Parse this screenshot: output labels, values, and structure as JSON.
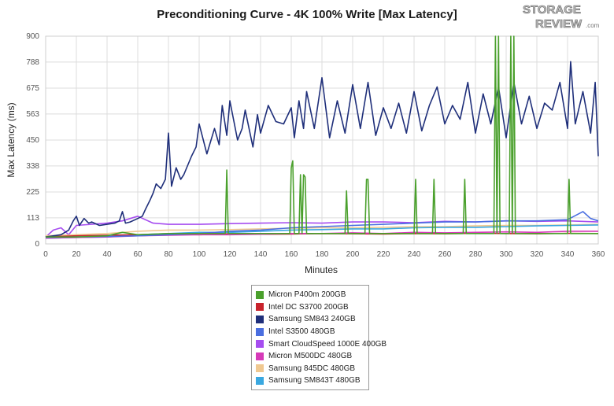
{
  "chart_data": {
    "type": "line",
    "title": "Preconditioning Curve - 4K 100% Write [Max Latency]",
    "xlabel": "Minutes",
    "ylabel": "Max Latency (ms)",
    "xlim": [
      0,
      360
    ],
    "ylim": [
      0,
      900
    ],
    "xticks": [
      "0",
      "20",
      "40",
      "60",
      "80",
      "100",
      "120",
      "140",
      "160",
      "180",
      "200",
      "220",
      "240",
      "260",
      "280",
      "300",
      "320",
      "340",
      "360"
    ],
    "yticks": [
      "0",
      "113",
      "225",
      "338",
      "450",
      "563",
      "675",
      "788",
      "900"
    ],
    "grid": true,
    "legend_position": "bottom-center",
    "series": [
      {
        "name": "Micron P400m 200GB",
        "color": "#4aa02c",
        "x": [
          0,
          20,
          40,
          50,
          60,
          80,
          100,
          117,
          118,
          119,
          120,
          140,
          159,
          160,
          161,
          162,
          165,
          166,
          167,
          168,
          169,
          170,
          172,
          180,
          195,
          196,
          197,
          200,
          208,
          209,
          210,
          211,
          220,
          240,
          241,
          242,
          243,
          252,
          253,
          254,
          260,
          272,
          273,
          274,
          280,
          292,
          293,
          294,
          295,
          296,
          297,
          300,
          302,
          303,
          304,
          305,
          306,
          320,
          340,
          341,
          342,
          343,
          360
        ],
        "y": [
          30,
          30,
          35,
          50,
          40,
          45,
          45,
          45,
          320,
          45,
          45,
          45,
          45,
          330,
          360,
          45,
          45,
          300,
          45,
          300,
          290,
          45,
          45,
          45,
          45,
          230,
          45,
          45,
          45,
          280,
          280,
          45,
          45,
          45,
          280,
          45,
          45,
          45,
          280,
          45,
          45,
          45,
          280,
          45,
          45,
          45,
          900,
          45,
          900,
          45,
          45,
          45,
          45,
          900,
          45,
          900,
          45,
          45,
          45,
          280,
          45,
          45,
          45
        ]
      },
      {
        "name": "Intel DC S3700 200GB",
        "color": "#c8232c",
        "x": [
          0,
          20,
          40,
          60,
          80,
          100,
          120,
          140,
          160,
          180,
          200,
          220,
          240,
          260,
          280,
          300,
          320,
          340,
          360
        ],
        "y": [
          30,
          35,
          38,
          40,
          42,
          40,
          44,
          42,
          43,
          45,
          44,
          43,
          45,
          44,
          46,
          45,
          44,
          46,
          45
        ]
      },
      {
        "name": "Samsung SM843 240GB",
        "color": "#1f2f7a",
        "x": [
          0,
          10,
          15,
          18,
          20,
          22,
          25,
          28,
          30,
          35,
          40,
          45,
          48,
          50,
          52,
          55,
          60,
          63,
          65,
          68,
          70,
          72,
          75,
          78,
          80,
          82,
          85,
          88,
          90,
          95,
          98,
          100,
          105,
          110,
          113,
          115,
          118,
          120,
          125,
          128,
          130,
          135,
          138,
          140,
          145,
          150,
          155,
          160,
          162,
          165,
          168,
          170,
          175,
          180,
          185,
          190,
          195,
          200,
          205,
          210,
          215,
          220,
          225,
          230,
          235,
          240,
          245,
          250,
          255,
          260,
          265,
          270,
          275,
          280,
          285,
          290,
          295,
          300,
          305,
          310,
          315,
          320,
          325,
          330,
          335,
          340,
          342,
          345,
          350,
          355,
          358,
          360
        ],
        "y": [
          30,
          40,
          60,
          100,
          120,
          80,
          110,
          90,
          95,
          80,
          85,
          90,
          100,
          140,
          90,
          95,
          110,
          120,
          150,
          190,
          220,
          260,
          240,
          280,
          480,
          250,
          330,
          280,
          300,
          380,
          420,
          520,
          390,
          500,
          430,
          600,
          470,
          620,
          450,
          500,
          580,
          420,
          560,
          480,
          600,
          530,
          520,
          590,
          460,
          620,
          500,
          660,
          500,
          720,
          460,
          620,
          480,
          690,
          500,
          700,
          470,
          590,
          500,
          610,
          480,
          660,
          490,
          600,
          680,
          520,
          600,
          540,
          700,
          480,
          650,
          520,
          680,
          460,
          700,
          520,
          640,
          500,
          610,
          580,
          700,
          500,
          790,
          520,
          660,
          480,
          700,
          380
        ]
      },
      {
        "name": "Intel S3500 480GB",
        "color": "#4a6ee0",
        "x": [
          0,
          20,
          40,
          60,
          80,
          100,
          120,
          140,
          160,
          180,
          200,
          220,
          240,
          260,
          280,
          300,
          320,
          340,
          350,
          355,
          360
        ],
        "y": [
          28,
          30,
          32,
          35,
          40,
          45,
          55,
          60,
          70,
          75,
          80,
          85,
          90,
          95,
          95,
          100,
          100,
          105,
          140,
          110,
          100
        ]
      },
      {
        "name": "Smart CloudSpeed 1000E 400GB",
        "color": "#a64df0",
        "x": [
          0,
          5,
          10,
          15,
          20,
          40,
          50,
          60,
          70,
          80,
          100,
          120,
          140,
          160,
          180,
          200,
          220,
          240,
          260,
          280,
          300,
          320,
          340,
          360
        ],
        "y": [
          30,
          60,
          70,
          40,
          80,
          90,
          100,
          120,
          90,
          85,
          85,
          88,
          90,
          92,
          90,
          95,
          95,
          92,
          98,
          95,
          100,
          98,
          100,
          95
        ]
      },
      {
        "name": "Micron M500DC 480GB",
        "color": "#d63ab8",
        "x": [
          0,
          20,
          40,
          60,
          80,
          100,
          120,
          140,
          160,
          180,
          200,
          220,
          240,
          260,
          280,
          300,
          320,
          340,
          360
        ],
        "y": [
          25,
          28,
          30,
          35,
          38,
          40,
          40,
          42,
          45,
          45,
          48,
          45,
          50,
          48,
          50,
          52,
          50,
          55,
          55
        ]
      },
      {
        "name": "Samsung 845DC 480GB",
        "color": "#f0c890",
        "x": [
          0,
          20,
          40,
          60,
          80,
          100,
          120,
          140,
          160,
          180,
          200,
          220,
          240,
          260,
          280,
          300,
          320,
          340,
          360
        ],
        "y": [
          35,
          40,
          45,
          55,
          60,
          60,
          62,
          65,
          68,
          70,
          70,
          72,
          75,
          75,
          78,
          80,
          80,
          82,
          85
        ]
      },
      {
        "name": "Samsung SM843T 480GB",
        "color": "#3aa8e0",
        "x": [
          0,
          20,
          40,
          60,
          80,
          100,
          120,
          140,
          160,
          180,
          200,
          220,
          240,
          260,
          280,
          300,
          320,
          340,
          360
        ],
        "y": [
          25,
          28,
          30,
          40,
          45,
          50,
          50,
          55,
          60,
          62,
          65,
          65,
          70,
          72,
          72,
          75,
          78,
          80,
          82
        ]
      }
    ]
  },
  "logo": {
    "line1": "STORAGE",
    "line2": "REVIEW",
    "suffix": ".com"
  }
}
